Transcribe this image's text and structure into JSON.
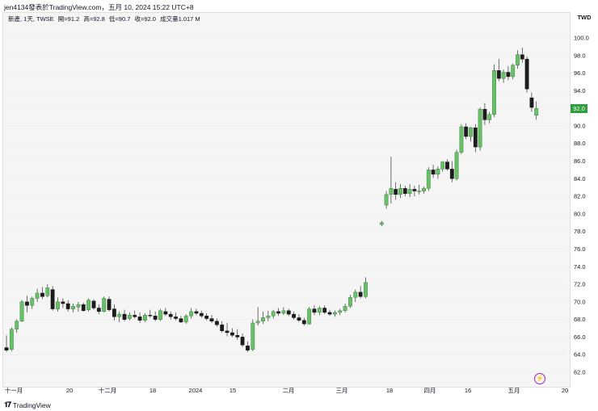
{
  "header": {
    "top_text": "jen4134發表於TradingView.com，五月 10, 2024 15:22 UTC+8"
  },
  "legend": {
    "symbol": "新產, 1天, TWSE",
    "open": "開=91.2",
    "high": "高=92.8",
    "low": "低=90.7",
    "close": "收=92.0",
    "volume": "成交量1.017 M"
  },
  "currency": "TWD",
  "last_price_label": "92.0",
  "footer": {
    "logo": "TradingView"
  },
  "icons": {
    "flash": "lightning-icon",
    "logo": "tradingview-logo-icon"
  },
  "colors": {
    "up": "#6abf69",
    "down": "#1c1c1c",
    "last_price": "#2e9e3e"
  },
  "chart_data": {
    "type": "candlestick",
    "y_ticks": [
      "100.0",
      "98.0",
      "96.0",
      "94.0",
      "92.0",
      "90.0",
      "88.0",
      "86.0",
      "84.0",
      "82.0",
      "80.0",
      "78.0",
      "76.0",
      "74.0",
      "72.0",
      "70.0",
      "68.0",
      "66.0",
      "64.0",
      "62.0"
    ],
    "ylim": [
      61,
      101
    ],
    "x_ticks": [
      "十一月",
      "20",
      "十二月",
      "18",
      "2024",
      "15",
      "二月",
      "三月",
      "18",
      "四月",
      "16",
      "五月",
      "20"
    ],
    "candles": [
      [
        64.8,
        66.2,
        64.3,
        64.5
      ],
      [
        64.6,
        67.1,
        64.4,
        66.9
      ],
      [
        66.9,
        68.0,
        66.5,
        67.8
      ],
      [
        67.8,
        70.2,
        67.7,
        70.0
      ],
      [
        70.0,
        70.7,
        68.8,
        69.6
      ],
      [
        69.6,
        70.6,
        69.2,
        70.4
      ],
      [
        70.4,
        71.5,
        70.0,
        71.0
      ],
      [
        71.0,
        71.7,
        70.3,
        70.6
      ],
      [
        70.7,
        72.0,
        70.5,
        71.6
      ],
      [
        71.4,
        71.8,
        69.0,
        69.2
      ],
      [
        69.2,
        70.5,
        68.9,
        70.0
      ],
      [
        70.0,
        70.4,
        69.3,
        69.8
      ],
      [
        69.8,
        70.2,
        68.9,
        69.2
      ],
      [
        69.2,
        69.8,
        68.8,
        69.5
      ],
      [
        69.4,
        70.0,
        68.9,
        69.7
      ],
      [
        69.7,
        69.9,
        68.9,
        69.0
      ],
      [
        69.1,
        70.4,
        68.9,
        70.2
      ],
      [
        70.1,
        70.3,
        69.1,
        69.3
      ],
      [
        69.3,
        69.7,
        68.6,
        68.9
      ],
      [
        68.9,
        70.6,
        68.8,
        70.4
      ],
      [
        70.3,
        70.6,
        68.9,
        69.1
      ],
      [
        69.2,
        69.7,
        67.9,
        68.3
      ],
      [
        68.3,
        68.9,
        67.7,
        68.6
      ],
      [
        68.6,
        69.1,
        67.8,
        68.0
      ],
      [
        68.1,
        68.8,
        67.9,
        68.5
      ],
      [
        68.5,
        69.0,
        68.1,
        68.3
      ],
      [
        68.3,
        68.8,
        67.6,
        67.9
      ],
      [
        67.9,
        68.7,
        67.7,
        68.5
      ],
      [
        68.5,
        69.1,
        68.2,
        68.4
      ],
      [
        68.4,
        68.9,
        67.8,
        68.0
      ],
      [
        68.0,
        69.2,
        67.8,
        69.0
      ],
      [
        68.9,
        69.3,
        68.4,
        68.6
      ],
      [
        68.6,
        68.9,
        68.0,
        68.3
      ],
      [
        68.3,
        68.8,
        67.9,
        68.1
      ],
      [
        68.1,
        68.4,
        67.6,
        67.7
      ],
      [
        67.7,
        68.6,
        67.5,
        68.4
      ],
      [
        68.4,
        69.3,
        68.1,
        68.9
      ],
      [
        68.9,
        69.2,
        68.5,
        68.7
      ],
      [
        68.7,
        69.0,
        68.2,
        68.4
      ],
      [
        68.4,
        68.7,
        67.9,
        68.1
      ],
      [
        68.1,
        68.5,
        67.6,
        67.8
      ],
      [
        67.8,
        68.1,
        67.2,
        67.4
      ],
      [
        67.4,
        67.8,
        66.5,
        66.7
      ],
      [
        66.7,
        67.6,
        66.1,
        66.5
      ],
      [
        66.5,
        67.0,
        66.0,
        66.2
      ],
      [
        66.2,
        66.9,
        65.7,
        66.0
      ],
      [
        66.0,
        66.4,
        64.9,
        65.1
      ],
      [
        65.0,
        65.5,
        64.3,
        64.5
      ],
      [
        64.6,
        68.0,
        64.4,
        67.6
      ],
      [
        67.6,
        69.4,
        67.3,
        67.8
      ],
      [
        67.8,
        68.9,
        67.5,
        68.2
      ],
      [
        68.2,
        69.0,
        67.8,
        68.4
      ],
      [
        68.4,
        69.1,
        68.1,
        68.9
      ],
      [
        68.9,
        69.3,
        68.4,
        68.7
      ],
      [
        68.7,
        69.4,
        68.5,
        69.0
      ],
      [
        69.0,
        69.2,
        68.4,
        68.6
      ],
      [
        68.6,
        68.9,
        68.0,
        68.2
      ],
      [
        68.2,
        68.6,
        67.7,
        67.9
      ],
      [
        67.9,
        68.2,
        67.3,
        67.5
      ],
      [
        67.5,
        69.4,
        67.4,
        69.2
      ],
      [
        69.2,
        69.6,
        68.5,
        68.8
      ],
      [
        68.8,
        69.5,
        68.5,
        69.3
      ],
      [
        69.3,
        69.6,
        68.6,
        68.8
      ],
      [
        68.8,
        69.1,
        68.4,
        68.6
      ],
      [
        68.6,
        69.0,
        68.3,
        68.8
      ],
      [
        68.8,
        69.2,
        68.5,
        69.0
      ],
      [
        69.0,
        69.8,
        68.8,
        69.5
      ],
      [
        69.5,
        70.8,
        69.3,
        70.5
      ],
      [
        70.5,
        71.4,
        70.0,
        71.1
      ],
      [
        71.1,
        71.8,
        70.4,
        70.6
      ],
      [
        70.6,
        72.8,
        70.4,
        72.2
      ],
      [
        78.8,
        79.2,
        78.6,
        79.0
      ],
      [
        81.0,
        82.6,
        80.6,
        82.2
      ],
      [
        82.2,
        86.5,
        81.2,
        82.9
      ],
      [
        82.8,
        83.6,
        81.6,
        82.2
      ],
      [
        82.2,
        83.4,
        81.8,
        82.9
      ],
      [
        82.9,
        83.2,
        82.0,
        82.3
      ],
      [
        82.3,
        83.4,
        81.9,
        82.8
      ],
      [
        82.8,
        83.2,
        82.0,
        82.6
      ],
      [
        82.6,
        83.3,
        82.2,
        82.6
      ],
      [
        82.6,
        83.1,
        82.3,
        82.9
      ],
      [
        82.9,
        85.3,
        82.6,
        85.0
      ],
      [
        85.0,
        85.6,
        84.1,
        84.5
      ],
      [
        84.5,
        85.4,
        84.0,
        85.1
      ],
      [
        85.1,
        86.0,
        84.8,
        85.9
      ],
      [
        85.9,
        86.2,
        84.9,
        85.1
      ],
      [
        85.1,
        86.0,
        83.6,
        84.0
      ],
      [
        84.0,
        87.3,
        83.8,
        87.0
      ],
      [
        87.0,
        90.2,
        86.8,
        89.9
      ],
      [
        89.9,
        90.3,
        88.5,
        88.8
      ],
      [
        88.8,
        89.9,
        88.2,
        89.8
      ],
      [
        89.8,
        90.2,
        87.0,
        87.6
      ],
      [
        87.6,
        92.1,
        87.2,
        91.9
      ],
      [
        91.9,
        92.6,
        90.1,
        90.7
      ],
      [
        90.7,
        91.6,
        90.3,
        91.3
      ],
      [
        91.3,
        97.0,
        91.0,
        96.3
      ],
      [
        96.3,
        97.6,
        95.1,
        95.4
      ],
      [
        95.4,
        96.4,
        94.9,
        96.1
      ],
      [
        96.1,
        96.8,
        95.2,
        95.6
      ],
      [
        95.6,
        97.1,
        95.3,
        96.9
      ],
      [
        96.9,
        98.6,
        96.5,
        98.1
      ],
      [
        98.1,
        98.9,
        97.2,
        97.6
      ],
      [
        97.6,
        97.9,
        93.8,
        94.2
      ],
      [
        93.2,
        93.8,
        91.6,
        92.1
      ],
      [
        91.2,
        92.8,
        90.7,
        92.0
      ]
    ]
  }
}
